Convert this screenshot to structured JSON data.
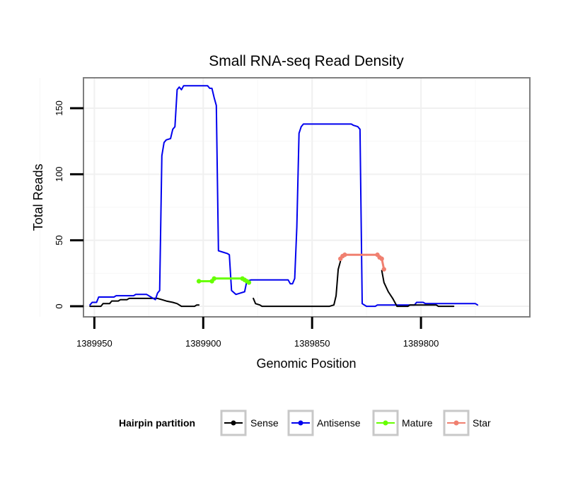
{
  "chart_data": {
    "type": "line",
    "title": "Small RNA-seq Read Density",
    "xlabel": "Genomic Position",
    "ylabel": "Total Reads",
    "xlim": [
      1389955,
      1389750
    ],
    "ylim": [
      -8,
      173
    ],
    "x_reversed": true,
    "grid": true,
    "x_ticks": [
      1389950,
      1389900,
      1389850,
      1389800
    ],
    "x_tick_labels": [
      "1389950",
      "1389900",
      "1389850",
      "1389800"
    ],
    "y_ticks": [
      0,
      50,
      100,
      150
    ],
    "y_tick_labels": [
      "0",
      "50",
      "100",
      "150"
    ],
    "legend": {
      "title": "Hairpin partition",
      "position": "bottom",
      "entries": [
        {
          "label": "Sense",
          "color": "#000000"
        },
        {
          "label": "Antisense",
          "color": "#0000ee"
        },
        {
          "label": "Mature",
          "color": "#66ff00"
        },
        {
          "label": "Star",
          "color": "#f08070"
        }
      ]
    },
    "series": [
      {
        "name": "Sense",
        "color": "#000000",
        "points": [
          [
            1389952,
            0
          ],
          [
            1389947,
            0
          ],
          [
            1389946,
            2
          ],
          [
            1389943,
            2
          ],
          [
            1389942,
            4
          ],
          [
            1389939,
            4
          ],
          [
            1389938,
            5
          ],
          [
            1389935,
            5
          ],
          [
            1389934,
            6
          ],
          [
            1389921,
            6
          ],
          [
            1389919,
            5
          ],
          [
            1389917,
            4
          ],
          [
            1389914,
            3
          ],
          [
            1389912,
            2
          ],
          [
            1389910,
            0
          ],
          [
            1389904,
            0
          ],
          [
            1389903,
            1
          ],
          [
            1389902,
            1
          ]
        ]
      },
      {
        "name": "Antisense",
        "color": "#0000ee",
        "points": [
          [
            1389952,
            1
          ],
          [
            1389951,
            3
          ],
          [
            1389949,
            3
          ],
          [
            1389948,
            7
          ],
          [
            1389941,
            7
          ],
          [
            1389940,
            8
          ],
          [
            1389932,
            8
          ],
          [
            1389931,
            9
          ],
          [
            1389926,
            9
          ],
          [
            1389924,
            7
          ],
          [
            1389922,
            5
          ],
          [
            1389921,
            10
          ],
          [
            1389920,
            12
          ],
          [
            1389919,
            114
          ],
          [
            1389918,
            124
          ],
          [
            1389917,
            126
          ],
          [
            1389915,
            127
          ],
          [
            1389914,
            134
          ],
          [
            1389913,
            136
          ],
          [
            1389912,
            164
          ],
          [
            1389911,
            166
          ],
          [
            1389910,
            164
          ],
          [
            1389909,
            167
          ],
          [
            1389898,
            167
          ],
          [
            1389897,
            165
          ],
          [
            1389896,
            165
          ],
          [
            1389895,
            158
          ],
          [
            1389894,
            152
          ],
          [
            1389893,
            42
          ],
          [
            1389891,
            41
          ],
          [
            1389889,
            40
          ],
          [
            1389888,
            39
          ],
          [
            1389887,
            12
          ],
          [
            1389885,
            9
          ],
          [
            1389883,
            10
          ],
          [
            1389881,
            11
          ],
          [
            1389880,
            19
          ],
          [
            1389878,
            20
          ],
          [
            1389861,
            20
          ],
          [
            1389860,
            17
          ],
          [
            1389859,
            17
          ],
          [
            1389858,
            21
          ],
          [
            1389857,
            60
          ],
          [
            1389856,
            131
          ],
          [
            1389855,
            136
          ],
          [
            1389854,
            138
          ],
          [
            1389832,
            138
          ],
          [
            1389831,
            137
          ],
          [
            1389829,
            136
          ],
          [
            1389828,
            134
          ],
          [
            1389827,
            2
          ],
          [
            1389825,
            0
          ],
          [
            1389821,
            0
          ],
          [
            1389820,
            1
          ],
          [
            1389803,
            1
          ],
          [
            1389802,
            3
          ],
          [
            1389799,
            3
          ],
          [
            1389798,
            2
          ],
          [
            1389775,
            2
          ],
          [
            1389774,
            1
          ]
        ]
      },
      {
        "name": "Sense",
        "color": "#000000",
        "points": [
          [
            1389877,
            6
          ],
          [
            1389876,
            2
          ],
          [
            1389874,
            1
          ],
          [
            1389873,
            0
          ],
          [
            1389842,
            0
          ],
          [
            1389840,
            1
          ],
          [
            1389839,
            8
          ],
          [
            1389838,
            28
          ],
          [
            1389837,
            34
          ]
        ]
      },
      {
        "name": "Sense",
        "color": "#000000",
        "points": [
          [
            1389818,
            27
          ],
          [
            1389817,
            18
          ],
          [
            1389815,
            11
          ],
          [
            1389813,
            6
          ],
          [
            1389811,
            0
          ],
          [
            1389806,
            0
          ],
          [
            1389805,
            1
          ],
          [
            1389793,
            1
          ],
          [
            1389792,
            0
          ],
          [
            1389785,
            0
          ]
        ]
      },
      {
        "name": "Mature",
        "color": "#66ff00",
        "points": [
          [
            1389902,
            19
          ],
          [
            1389896,
            19
          ],
          [
            1389895,
            21
          ],
          [
            1389882,
            21
          ],
          [
            1389881,
            20
          ],
          [
            1389880,
            19
          ],
          [
            1389879,
            18
          ]
        ]
      },
      {
        "name": "Star",
        "color": "#f08070",
        "points": [
          [
            1389837,
            36
          ],
          [
            1389836,
            38
          ],
          [
            1389835,
            39
          ],
          [
            1389820,
            39
          ],
          [
            1389819,
            37
          ],
          [
            1389818,
            36
          ],
          [
            1389817,
            28
          ]
        ]
      }
    ]
  }
}
